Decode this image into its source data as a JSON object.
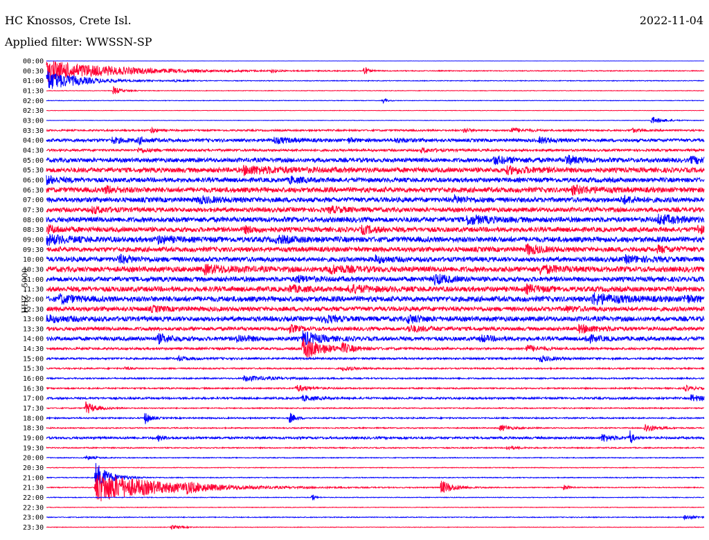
{
  "header": {
    "station": "HC Knossos, Crete Isl.",
    "date": "2022-11-04",
    "filter_prefix": "Applied filter:",
    "filter_name": "WWSSN-SP"
  },
  "channel_label": "HHZ - 5000",
  "colors": {
    "trace_even": "#0000ff",
    "trace_odd": "#ff0033",
    "background": "#ffffff",
    "text": "#000000"
  },
  "chart_data": {
    "type": "line",
    "title": "",
    "xlabel": "",
    "ylabel": "HHZ - 5000",
    "x": [
      0,
      30
    ],
    "x_unit": "minutes",
    "series_colors": [
      "#0000ff",
      "#ff0033"
    ],
    "rows": [
      {
        "label": "00:00",
        "base": 0.1,
        "events": []
      },
      {
        "label": "00:30",
        "base": 0.6,
        "events": [
          {
            "t": 0.0,
            "a": 16,
            "d": 0.1
          },
          {
            "t": 0.343,
            "a": 3,
            "d": 0.006
          },
          {
            "t": 0.483,
            "a": 7,
            "d": 0.006
          }
        ]
      },
      {
        "label": "01:00",
        "base": 0.5,
        "events": [
          {
            "t": 0.0,
            "a": 15,
            "d": 0.05
          },
          {
            "t": 0.193,
            "a": 1.5,
            "d": 0.01
          }
        ]
      },
      {
        "label": "01:30",
        "base": 0.4,
        "events": [
          {
            "t": 0.102,
            "a": 6,
            "d": 0.012
          }
        ]
      },
      {
        "label": "02:00",
        "base": 0.4,
        "events": [
          {
            "t": 0.511,
            "a": 4,
            "d": 0.006
          }
        ]
      },
      {
        "label": "02:30",
        "base": 0.3,
        "events": []
      },
      {
        "label": "03:00",
        "base": 0.3,
        "events": [
          {
            "t": 0.92,
            "a": 5,
            "d": 0.02
          }
        ]
      },
      {
        "label": "03:30",
        "base": 1.2,
        "events": [
          {
            "t": 0.16,
            "a": 4,
            "d": 0.008
          },
          {
            "t": 0.635,
            "a": 4,
            "d": 0.008
          },
          {
            "t": 0.705,
            "a": 4,
            "d": 0.02
          },
          {
            "t": 0.89,
            "a": 3,
            "d": 0.012
          }
        ]
      },
      {
        "label": "04:00",
        "base": 2.2,
        "events": [
          {
            "t": 0.1,
            "a": 4,
            "d": 0.02
          },
          {
            "t": 0.14,
            "a": 4,
            "d": 0.015
          },
          {
            "t": 0.345,
            "a": 4,
            "d": 0.03
          },
          {
            "t": 0.46,
            "a": 3,
            "d": 0.01
          },
          {
            "t": 0.53,
            "a": 3,
            "d": 0.02
          },
          {
            "t": 0.75,
            "a": 4,
            "d": 0.02
          }
        ]
      },
      {
        "label": "04:30",
        "base": 1.6,
        "events": [
          {
            "t": 0.14,
            "a": 3,
            "d": 0.02
          },
          {
            "t": 0.57,
            "a": 3,
            "d": 0.02
          }
        ]
      },
      {
        "label": "05:00",
        "base": 3.0,
        "events": [
          {
            "t": 0.68,
            "a": 5,
            "d": 0.03
          },
          {
            "t": 0.79,
            "a": 6,
            "d": 0.02
          },
          {
            "t": 0.98,
            "a": 4,
            "d": 0.03
          }
        ]
      },
      {
        "label": "05:30",
        "base": 3.4,
        "events": [
          {
            "t": 0.3,
            "a": 5,
            "d": 0.06
          },
          {
            "t": 0.7,
            "a": 4,
            "d": 0.04
          }
        ]
      },
      {
        "label": "06:00",
        "base": 3.2,
        "events": [
          {
            "t": 0.0,
            "a": 5,
            "d": 0.02
          },
          {
            "t": 0.37,
            "a": 4,
            "d": 0.02
          }
        ]
      },
      {
        "label": "06:30",
        "base": 3.6,
        "events": [
          {
            "t": 0.09,
            "a": 4,
            "d": 0.02
          },
          {
            "t": 0.8,
            "a": 5,
            "d": 0.03
          }
        ]
      },
      {
        "label": "07:00",
        "base": 3.4,
        "events": [
          {
            "t": 0.23,
            "a": 4,
            "d": 0.03
          },
          {
            "t": 0.62,
            "a": 4,
            "d": 0.02
          },
          {
            "t": 0.875,
            "a": 5,
            "d": 0.02
          }
        ]
      },
      {
        "label": "07:30",
        "base": 3.2,
        "events": [
          {
            "t": 0.07,
            "a": 4,
            "d": 0.02
          },
          {
            "t": 0.43,
            "a": 4,
            "d": 0.02
          }
        ]
      },
      {
        "label": "08:00",
        "base": 3.6,
        "events": [
          {
            "t": 0.64,
            "a": 6,
            "d": 0.03
          },
          {
            "t": 0.93,
            "a": 6,
            "d": 0.03
          }
        ]
      },
      {
        "label": "08:30",
        "base": 3.4,
        "events": [
          {
            "t": 0.0,
            "a": 5,
            "d": 0.02
          },
          {
            "t": 0.3,
            "a": 4,
            "d": 0.02
          },
          {
            "t": 0.48,
            "a": 5,
            "d": 0.02
          },
          {
            "t": 0.99,
            "a": 6,
            "d": 0.01
          }
        ]
      },
      {
        "label": "09:00",
        "base": 3.8,
        "events": [
          {
            "t": 0.0,
            "a": 6,
            "d": 0.03
          },
          {
            "t": 0.17,
            "a": 4,
            "d": 0.02
          },
          {
            "t": 0.35,
            "a": 4,
            "d": 0.03
          }
        ]
      },
      {
        "label": "09:30",
        "base": 3.4,
        "events": [
          {
            "t": 0.73,
            "a": 7,
            "d": 0.02
          },
          {
            "t": 0.93,
            "a": 4,
            "d": 0.02
          }
        ]
      },
      {
        "label": "10:00",
        "base": 3.4,
        "events": [
          {
            "t": 0.11,
            "a": 5,
            "d": 0.02
          },
          {
            "t": 0.5,
            "a": 4,
            "d": 0.02
          },
          {
            "t": 0.88,
            "a": 4,
            "d": 0.03
          }
        ]
      },
      {
        "label": "10:30",
        "base": 3.8,
        "events": [
          {
            "t": 0.24,
            "a": 5,
            "d": 0.04
          },
          {
            "t": 0.43,
            "a": 5,
            "d": 0.03
          },
          {
            "t": 0.75,
            "a": 5,
            "d": 0.03
          }
        ]
      },
      {
        "label": "11:00",
        "base": 3.4,
        "events": [
          {
            "t": 0.38,
            "a": 4,
            "d": 0.02
          },
          {
            "t": 0.59,
            "a": 7,
            "d": 0.02
          }
        ]
      },
      {
        "label": "11:30",
        "base": 3.6,
        "events": [
          {
            "t": 0.37,
            "a": 4,
            "d": 0.02
          },
          {
            "t": 0.46,
            "a": 5,
            "d": 0.03
          },
          {
            "t": 0.73,
            "a": 5,
            "d": 0.02
          }
        ]
      },
      {
        "label": "12:00",
        "base": 3.8,
        "events": [
          {
            "t": 0.02,
            "a": 6,
            "d": 0.02
          },
          {
            "t": 0.83,
            "a": 7,
            "d": 0.04
          },
          {
            "t": 0.97,
            "a": 4,
            "d": 0.02
          }
        ]
      },
      {
        "label": "12:30",
        "base": 3.2,
        "events": [
          {
            "t": 0.16,
            "a": 3,
            "d": 0.02
          },
          {
            "t": 0.79,
            "a": 3,
            "d": 0.02
          }
        ]
      },
      {
        "label": "13:00",
        "base": 3.4,
        "events": [
          {
            "t": 0.0,
            "a": 4,
            "d": 0.03
          },
          {
            "t": 0.42,
            "a": 6,
            "d": 0.015
          },
          {
            "t": 0.55,
            "a": 5,
            "d": 0.02
          }
        ]
      },
      {
        "label": "13:30",
        "base": 2.6,
        "events": [
          {
            "t": 0.37,
            "a": 5,
            "d": 0.015
          },
          {
            "t": 0.55,
            "a": 4,
            "d": 0.03
          },
          {
            "t": 0.81,
            "a": 5,
            "d": 0.03
          }
        ]
      },
      {
        "label": "14:00",
        "base": 2.8,
        "events": [
          {
            "t": 0.17,
            "a": 6,
            "d": 0.02
          },
          {
            "t": 0.29,
            "a": 5,
            "d": 0.02
          },
          {
            "t": 0.39,
            "a": 10,
            "d": 0.025
          },
          {
            "t": 0.66,
            "a": 4,
            "d": 0.02
          },
          {
            "t": 0.82,
            "a": 5,
            "d": 0.02
          }
        ]
      },
      {
        "label": "14:30",
        "base": 1.6,
        "events": [
          {
            "t": 0.39,
            "a": 16,
            "d": 0.03
          },
          {
            "t": 0.45,
            "a": 6,
            "d": 0.015
          },
          {
            "t": 0.73,
            "a": 5,
            "d": 0.02
          }
        ]
      },
      {
        "label": "15:00",
        "base": 1.4,
        "events": [
          {
            "t": 0.2,
            "a": 3,
            "d": 0.02
          },
          {
            "t": 0.75,
            "a": 4,
            "d": 0.02
          }
        ]
      },
      {
        "label": "15:30",
        "base": 1.0,
        "events": [
          {
            "t": 0.12,
            "a": 2,
            "d": 0.01
          },
          {
            "t": 0.45,
            "a": 3,
            "d": 0.02
          }
        ]
      },
      {
        "label": "16:00",
        "base": 1.0,
        "events": [
          {
            "t": 0.3,
            "a": 4,
            "d": 0.04
          }
        ]
      },
      {
        "label": "16:30",
        "base": 1.0,
        "events": [
          {
            "t": 0.38,
            "a": 5,
            "d": 0.02
          },
          {
            "t": 0.97,
            "a": 4,
            "d": 0.015
          }
        ]
      },
      {
        "label": "17:00",
        "base": 1.4,
        "events": [
          {
            "t": 0.39,
            "a": 4,
            "d": 0.02
          },
          {
            "t": 0.98,
            "a": 5,
            "d": 0.02
          }
        ]
      },
      {
        "label": "17:30",
        "base": 0.8,
        "events": [
          {
            "t": 0.06,
            "a": 9,
            "d": 0.015
          }
        ]
      },
      {
        "label": "18:00",
        "base": 1.0,
        "events": [
          {
            "t": 0.15,
            "a": 9,
            "d": 0.008
          },
          {
            "t": 0.37,
            "a": 8,
            "d": 0.008
          }
        ]
      },
      {
        "label": "18:30",
        "base": 0.8,
        "events": [
          {
            "t": 0.69,
            "a": 5,
            "d": 0.015
          },
          {
            "t": 0.91,
            "a": 7,
            "d": 0.015
          }
        ]
      },
      {
        "label": "19:00",
        "base": 1.6,
        "events": [
          {
            "t": 0.17,
            "a": 4,
            "d": 0.01
          },
          {
            "t": 0.845,
            "a": 6,
            "d": 0.015
          },
          {
            "t": 0.887,
            "a": 12,
            "d": 0.004
          }
        ]
      },
      {
        "label": "19:30",
        "base": 0.8,
        "events": [
          {
            "t": 0.7,
            "a": 3,
            "d": 0.015
          }
        ]
      },
      {
        "label": "20:00",
        "base": 0.6,
        "events": [
          {
            "t": 0.06,
            "a": 3,
            "d": 0.015
          }
        ]
      },
      {
        "label": "20:30",
        "base": 0.5,
        "events": []
      },
      {
        "label": "21:00",
        "base": 0.6,
        "events": [
          {
            "t": 0.075,
            "a": 22,
            "d": 0.02
          }
        ]
      },
      {
        "label": "21:30",
        "base": 0.6,
        "events": [
          {
            "t": 0.075,
            "a": 22,
            "d": 0.1
          },
          {
            "t": 0.21,
            "a": 5,
            "d": 0.02
          },
          {
            "t": 0.6,
            "a": 10,
            "d": 0.02
          },
          {
            "t": 0.787,
            "a": 4,
            "d": 0.008
          }
        ]
      },
      {
        "label": "22:00",
        "base": 0.5,
        "events": [
          {
            "t": 0.404,
            "a": 6,
            "d": 0.004
          }
        ]
      },
      {
        "label": "22:30",
        "base": 0.4,
        "events": []
      },
      {
        "label": "23:00",
        "base": 0.6,
        "events": [
          {
            "t": 0.97,
            "a": 3,
            "d": 0.02
          }
        ]
      },
      {
        "label": "23:30",
        "base": 0.4,
        "events": [
          {
            "t": 0.19,
            "a": 3,
            "d": 0.015
          }
        ]
      }
    ]
  }
}
